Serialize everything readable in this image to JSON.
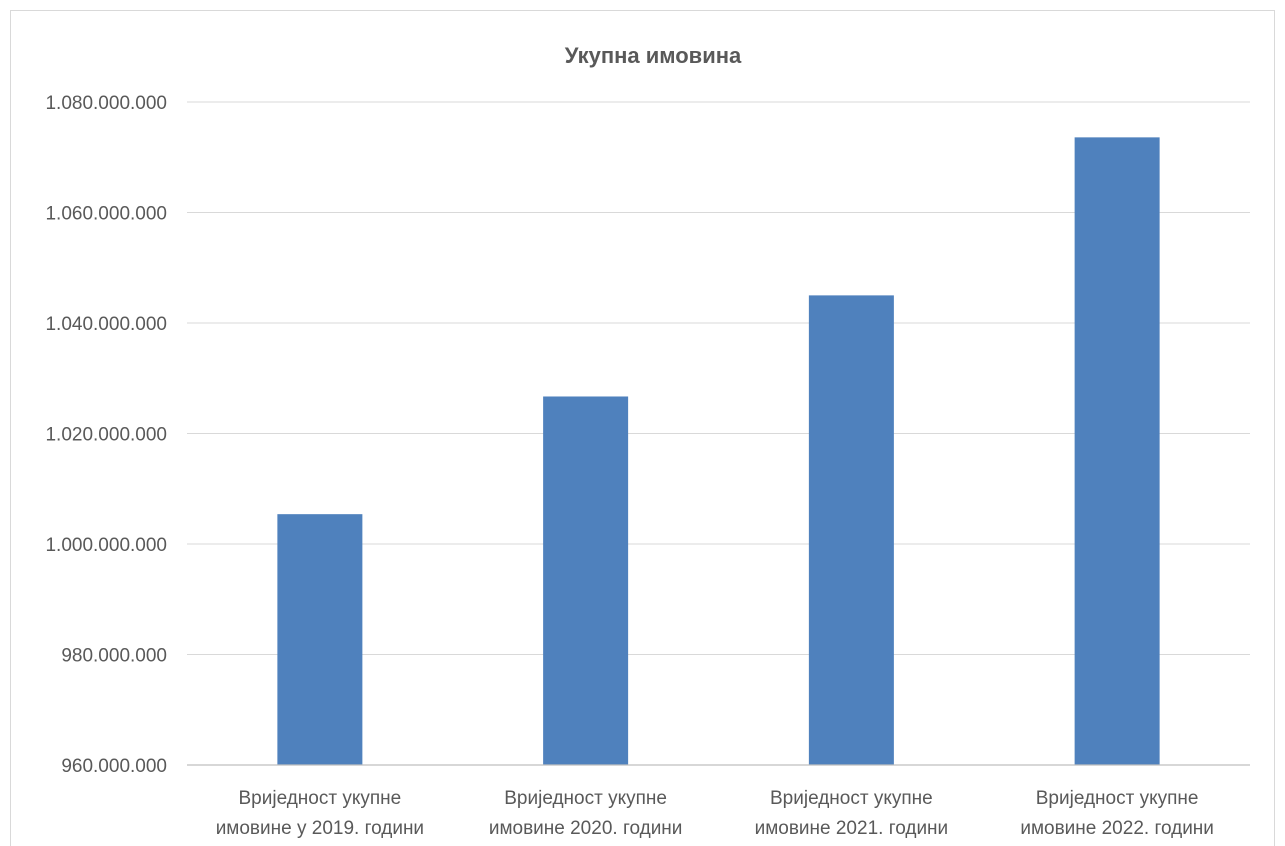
{
  "chart_data": {
    "type": "bar",
    "title": "Укупна имовина",
    "xlabel": "",
    "ylabel": "",
    "categories": [
      [
        "Вриједност укупне",
        "имовине у 2019. години"
      ],
      [
        "Вриједност укупне",
        "имовине 2020. години"
      ],
      [
        "Вриједност укупне",
        "имовине 2021. години"
      ],
      [
        "Вриједност укупне",
        "имовине 2022. години"
      ]
    ],
    "values": [
      1005400000,
      1026700000,
      1045000000,
      1073600000
    ],
    "ylim": [
      960000000,
      1080000000
    ],
    "yticks": [
      960000000,
      980000000,
      1000000000,
      1020000000,
      1040000000,
      1060000000,
      1080000000
    ],
    "ytick_labels": [
      "960.000.000",
      "980.000.000",
      "1.000.000.000",
      "1.020.000.000",
      "1.040.000.000",
      "1.060.000.000",
      "1.080.000.000"
    ],
    "grid": true,
    "legend": "none",
    "bar_color": "#4f81bd"
  }
}
